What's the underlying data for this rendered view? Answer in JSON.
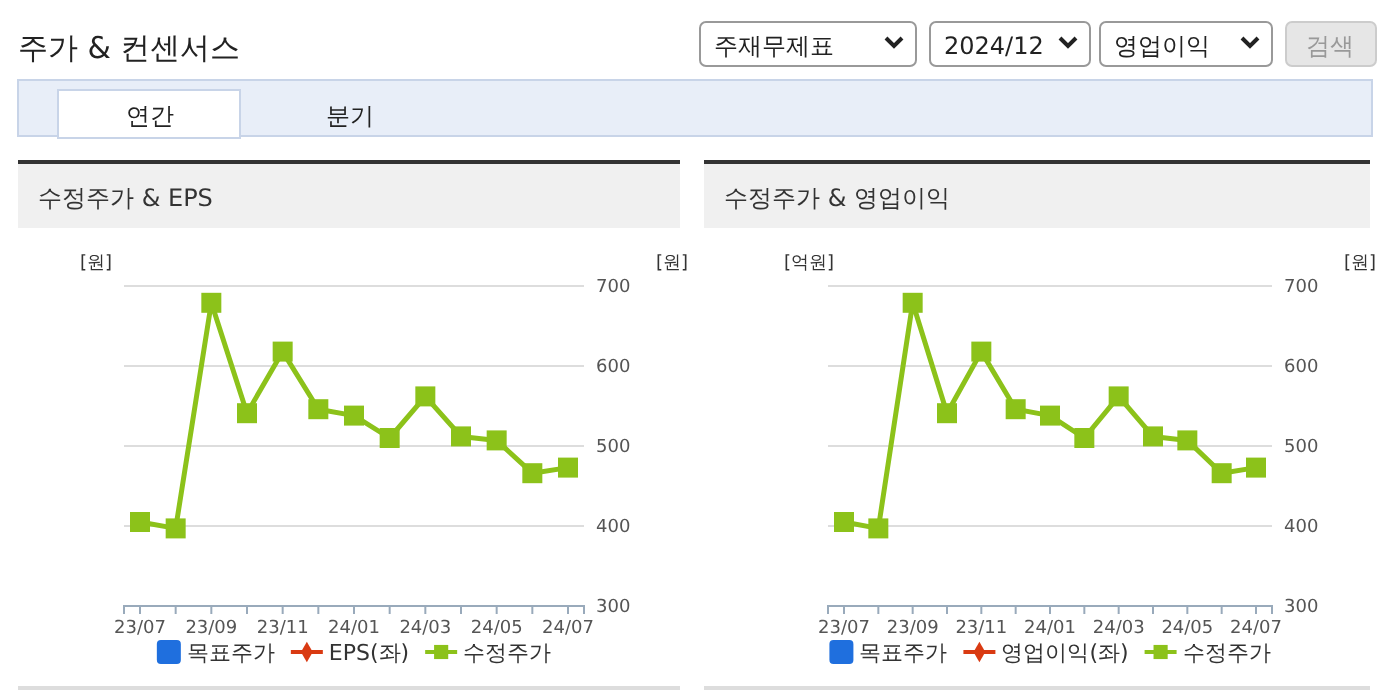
{
  "chart_data": [
    {
      "type": "other",
      "title": "주가 & 컨센서스",
      "annotations": [
        "주재무제표",
        "2024/12",
        "영업이익",
        "검색",
        "연간",
        "분기"
      ]
    },
    {
      "type": "line",
      "title": "수정주가 & EPS",
      "ylabel": "[원]",
      "y2label": "[원]",
      "categories": [
        "23/07",
        null,
        "23/09",
        null,
        "23/11",
        null,
        "24/01",
        null,
        "24/03",
        null,
        "24/05",
        null,
        "24/07"
      ],
      "y2lim": [
        300,
        700
      ],
      "y2ticks": [
        300,
        400,
        500,
        600,
        700
      ],
      "grid": "y",
      "legend": "bottom",
      "series": [
        {
          "name": "목표주가",
          "type": "bar",
          "color": "#1f6fde",
          "values": [
            null,
            null,
            null,
            null,
            null,
            null,
            null,
            null,
            null,
            null,
            null,
            null,
            null
          ]
        },
        {
          "name": "EPS(좌)",
          "type": "line",
          "marker": "diamond",
          "color": "#d93a12",
          "values": [
            null,
            null,
            null,
            null,
            null,
            null,
            null,
            null,
            null,
            null,
            null,
            null,
            null
          ]
        },
        {
          "name": "수정주가",
          "type": "line",
          "marker": "square",
          "axis": "y2",
          "color": "#8cc21a",
          "values": [
            405,
            397,
            679,
            541,
            618,
            546,
            538,
            510,
            562,
            512,
            507,
            466,
            473
          ]
        }
      ]
    },
    {
      "type": "line",
      "title": "수정주가 & 영업이익",
      "ylabel": "[억원]",
      "y2label": "[원]",
      "categories": [
        "23/07",
        null,
        "23/09",
        null,
        "23/11",
        null,
        "24/01",
        null,
        "24/03",
        null,
        "24/05",
        null,
        "24/07"
      ],
      "y2lim": [
        300,
        700
      ],
      "y2ticks": [
        300,
        400,
        500,
        600,
        700
      ],
      "grid": "y",
      "legend": "bottom",
      "series": [
        {
          "name": "목표주가",
          "type": "bar",
          "color": "#1f6fde",
          "values": [
            null,
            null,
            null,
            null,
            null,
            null,
            null,
            null,
            null,
            null,
            null,
            null,
            null
          ]
        },
        {
          "name": "영업이익(좌)",
          "type": "line",
          "marker": "diamond",
          "color": "#d93a12",
          "values": [
            null,
            null,
            null,
            null,
            null,
            null,
            null,
            null,
            null,
            null,
            null,
            null,
            null
          ]
        },
        {
          "name": "수정주가",
          "type": "line",
          "marker": "square",
          "axis": "y2",
          "color": "#8cc21a",
          "values": [
            405,
            397,
            679,
            541,
            618,
            546,
            538,
            510,
            562,
            512,
            507,
            466,
            473
          ]
        }
      ]
    }
  ]
}
